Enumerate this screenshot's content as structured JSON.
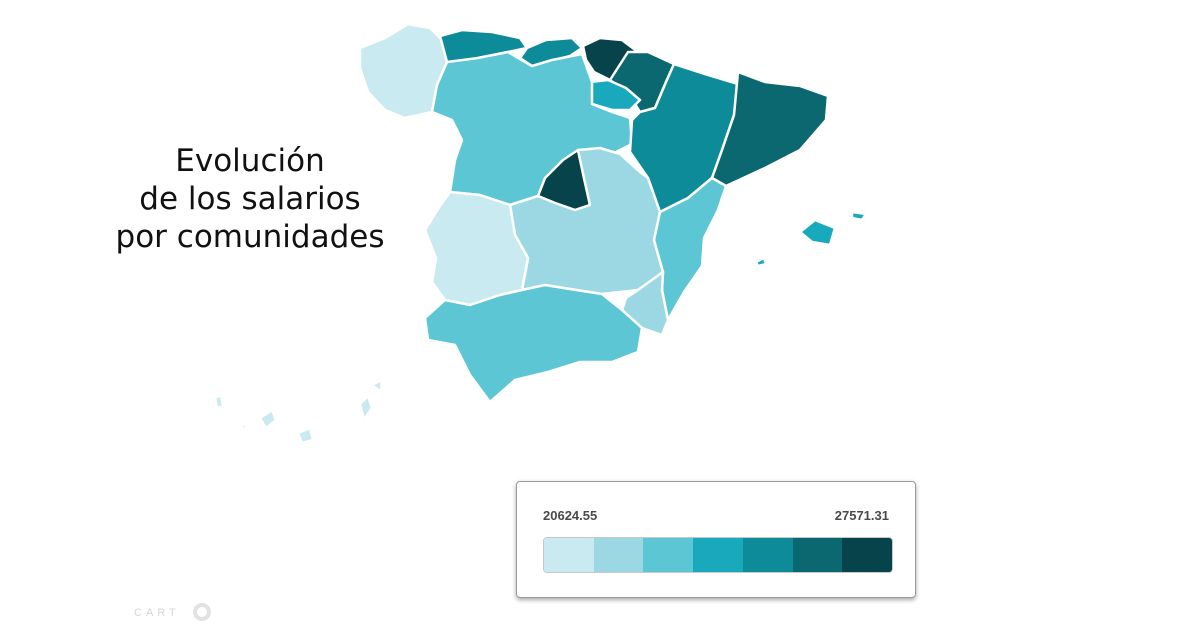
{
  "map": {
    "title_lines": [
      "Evolución",
      "de los salarios",
      "por comunidades"
    ],
    "scale_colors": [
      "#c9eaf0",
      "#9bd8e4",
      "#5cc6d5",
      "#19a9bd",
      "#0e8b99",
      "#0b6870",
      "#06434a"
    ],
    "regions": [
      {
        "name": "galicia",
        "class": 0
      },
      {
        "name": "asturias",
        "class": 4
      },
      {
        "name": "cantabria",
        "class": 4
      },
      {
        "name": "pais-vasco",
        "class": 6
      },
      {
        "name": "navarra",
        "class": 5
      },
      {
        "name": "la-rioja",
        "class": 3
      },
      {
        "name": "castilla-y-leon",
        "class": 2
      },
      {
        "name": "aragon",
        "class": 4
      },
      {
        "name": "cataluna",
        "class": 5
      },
      {
        "name": "madrid",
        "class": 6
      },
      {
        "name": "castilla-la-mancha",
        "class": 1
      },
      {
        "name": "extremadura",
        "class": 0
      },
      {
        "name": "comunidad-valenciana",
        "class": 2
      },
      {
        "name": "murcia",
        "class": 1
      },
      {
        "name": "andalucia",
        "class": 2
      },
      {
        "name": "islas-baleares",
        "class": 3
      },
      {
        "name": "islas-canarias",
        "class": 0
      }
    ]
  },
  "legend": {
    "min_label": "20624.55",
    "max_label": "27571.31"
  },
  "brand": {
    "text": "CART"
  }
}
